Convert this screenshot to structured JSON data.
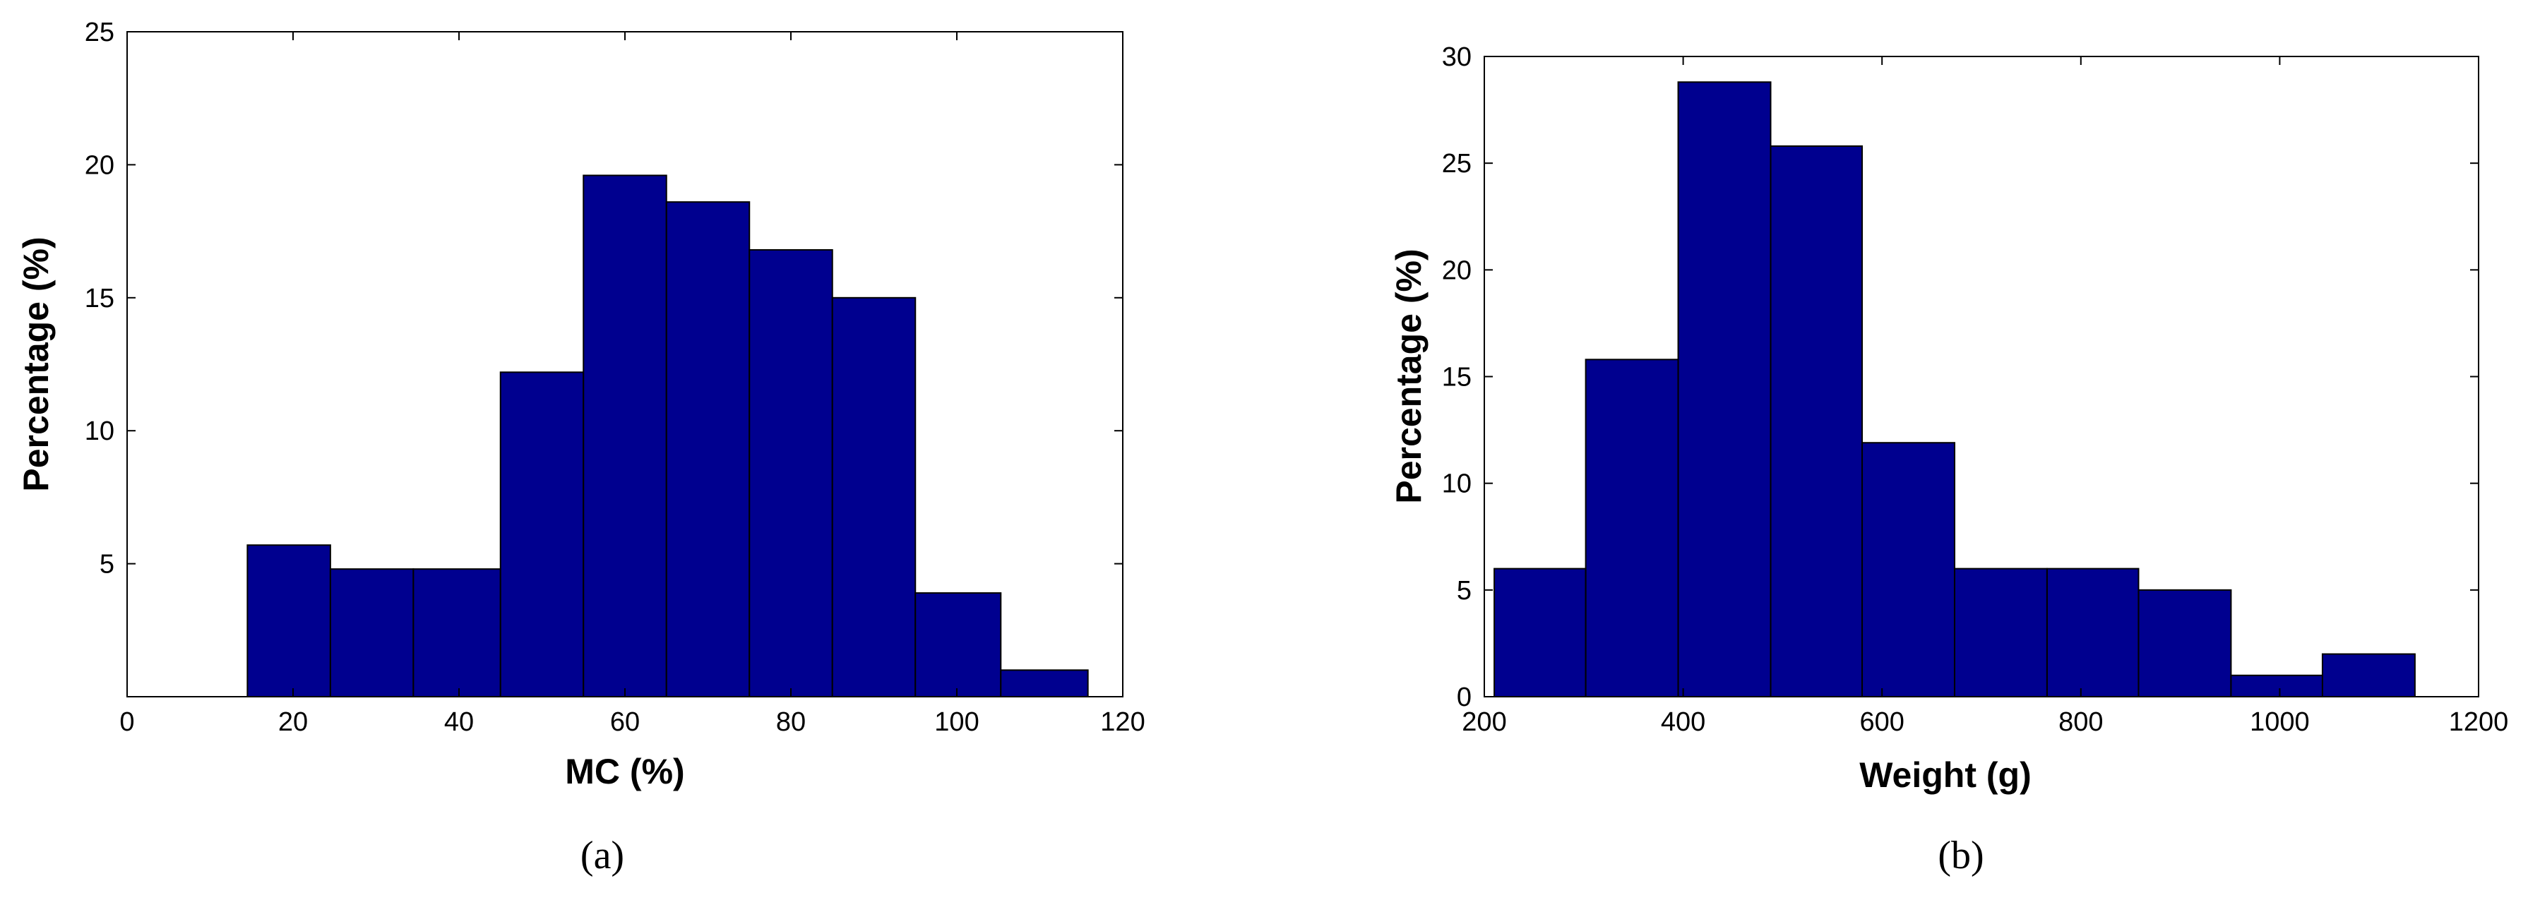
{
  "chart_data": [
    {
      "type": "bar",
      "panel_label": "(a)",
      "xlabel": "MC (%)",
      "ylabel": "Percentage (%)",
      "xlim": [
        0,
        120
      ],
      "ylim": [
        0,
        25
      ],
      "xticks": [
        0,
        20,
        40,
        60,
        80,
        100,
        120
      ],
      "yticks": [
        5,
        10,
        15,
        20,
        25
      ],
      "bin_edges": [
        14.5,
        24.5,
        34.5,
        45,
        55,
        65,
        75,
        85,
        95,
        105.3,
        115.8
      ],
      "values": [
        5.7,
        4.8,
        4.8,
        12.2,
        19.6,
        18.6,
        16.8,
        15.0,
        3.9,
        1.0
      ],
      "color": "#00008F",
      "grid": false
    },
    {
      "type": "bar",
      "panel_label": "(b)",
      "xlabel": "Weight (g)",
      "ylabel": "Percentage (%)",
      "xlim": [
        200,
        1200
      ],
      "ylim": [
        0,
        30
      ],
      "xticks": [
        200,
        400,
        600,
        800,
        1000,
        1200
      ],
      "yticks": [
        0,
        5,
        10,
        15,
        20,
        25,
        30
      ],
      "bin_edges": [
        210,
        302,
        395,
        488,
        580,
        673,
        766,
        858,
        951,
        1043,
        1136
      ],
      "values": [
        6,
        15.8,
        28.8,
        25.8,
        11.9,
        6,
        6,
        5,
        1,
        2
      ],
      "color": "#00008F",
      "grid": false
    }
  ]
}
